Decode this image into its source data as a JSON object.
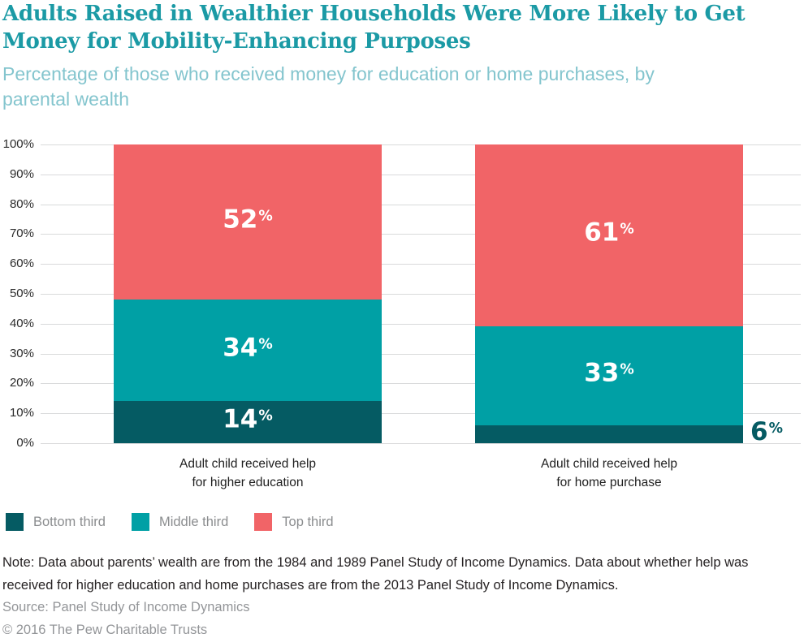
{
  "header": {
    "title": "Adults Raised in Wealthier Households Were More Likely to Get\nMoney for Mobility-Enhancing Purposes",
    "subtitle": "Percentage of those who received money for education or home purchases, by\nparental wealth"
  },
  "chart_data": {
    "type": "bar",
    "stacked": true,
    "title": "Adults Raised in Wealthier Households Were More Likely to Get Money for Mobility-Enhancing Purposes",
    "subtitle": "Percentage of those who received money for education or home purchases, by parental wealth",
    "categories": [
      "Adult child received help\nfor higher education",
      "Adult child received help\nfor home purchase"
    ],
    "series": [
      {
        "name": "Bottom third",
        "color": "#055b63",
        "values": [
          14,
          6
        ]
      },
      {
        "name": "Middle third",
        "color": "#00a0a5",
        "values": [
          34,
          33
        ]
      },
      {
        "name": "Top third",
        "color": "#f16467",
        "values": [
          52,
          61
        ]
      }
    ],
    "value_label_suffix": "%",
    "ylim": [
      0,
      100
    ],
    "yticks": [
      "0%",
      "10%",
      "20%",
      "30%",
      "40%",
      "50%",
      "60%",
      "70%",
      "80%",
      "90%",
      "100%"
    ],
    "grid": true,
    "gridline_color": "#d9dadb",
    "legend_position": "bottom-left",
    "small_segment_label_outside_threshold": 10
  },
  "colors": {
    "title_teal": "#1b9aa5",
    "subtitle_teal": "#84c5ce",
    "bottom_third": "#055b63",
    "middle_third": "#00a0a5",
    "top_third": "#f16467",
    "legend_text": "#8b8d8f",
    "footer_gray": "#939598"
  },
  "footer": {
    "note": "Note: Data about parents’ wealth are from the 1984 and 1989 Panel Study of Income Dynamics. Data about whether help was received for higher education and home purchases are from the 2013 Panel Study of Income Dynamics.",
    "source": "Source: Panel Study of Income Dynamics",
    "copyright": "© 2016 The Pew Charitable Trusts"
  }
}
